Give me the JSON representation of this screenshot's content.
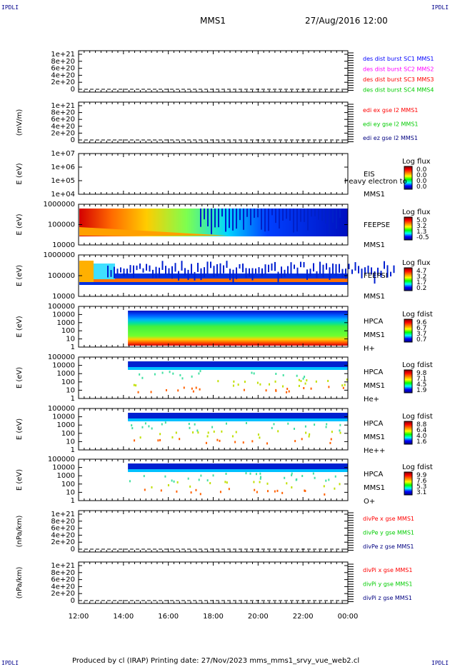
{
  "corner_labels": {
    "tl": "IPDLI",
    "tr": "IPDLI",
    "bl": "IPDLI",
    "br": "IPDLI"
  },
  "header": {
    "spacecraft": "MMS1",
    "datetime": "27/Aug/2016 12:00"
  },
  "footer": {
    "text": "Produced by cl (IRAP)   Printing date: 27/Nov/2023   mms_mms1_srvy_vue_web2.cl"
  },
  "colors": {
    "black": "#000000",
    "blue": "#0000ff",
    "magenta": "#ff00ff",
    "red": "#ff0000",
    "green": "#00cc00",
    "navy": "#000080"
  },
  "chart_data": [
    {
      "type": "line",
      "ylabel": "",
      "yticks": [
        "0",
        "2e+20",
        "4e+20",
        "6e+20",
        "8e+20",
        "1e+21"
      ],
      "series": [
        {
          "name": "des dist burst SC1 MMS1",
          "color": "#0000ff"
        },
        {
          "name": "des dist burst SC2 MMS2",
          "color": "#ff00ff"
        },
        {
          "name": "des dist burst SC3 MMS3",
          "color": "#ff0000"
        },
        {
          "name": "des dist burst SC4 MMS4",
          "color": "#00cc00"
        }
      ]
    },
    {
      "type": "line",
      "ylabel": "(mV/m)",
      "yticks": [
        "0",
        "2e+20",
        "4e+20",
        "6e+20",
        "8e+20",
        "1e+21"
      ],
      "series": [
        {
          "name": "edi ex gse l2 MMS1",
          "color": "#ff0000"
        },
        {
          "name": "edi ey gse l2 MMS1",
          "color": "#00cc00"
        },
        {
          "name": "edi ez gse l2 MMS1",
          "color": "#000080"
        }
      ]
    },
    {
      "type": "heatmap",
      "ylabel": "E (eV)",
      "yticks": [
        "1e+04",
        "1e+05",
        "1e+06",
        "1e+07"
      ],
      "log_y": true,
      "labels": [
        "EIS",
        "MMS1"
      ],
      "overlay_text": "heavy electron to",
      "colorbar": {
        "title": "Log flux",
        "ticks": [
          "0.0",
          "0.0",
          "0.0",
          "0.0"
        ]
      },
      "data_present": false
    },
    {
      "type": "heatmap",
      "ylabel": "E (eV)",
      "yticks": [
        "10000",
        "100000",
        "1000000"
      ],
      "log_y": true,
      "labels": [
        "FEEPSE",
        "MMS1"
      ],
      "colorbar": {
        "title": "Log flux",
        "ticks": [
          "5.0",
          "3.2",
          "1.3",
          "-0.5"
        ]
      },
      "data_start": "12:00",
      "data_end": "00:00"
    },
    {
      "type": "heatmap",
      "ylabel": "E (eV)",
      "yticks": [
        "10000",
        "100000",
        "1000000"
      ],
      "log_y": true,
      "labels": [
        "FEEPSI",
        "MMS1"
      ],
      "colorbar": {
        "title": "Log flux",
        "ticks": [
          "4.7",
          "3.2",
          "1.7",
          "0.2"
        ]
      },
      "data_start": "12:00",
      "data_end": "00:00"
    },
    {
      "type": "heatmap",
      "ylabel": "E (eV)",
      "yticks": [
        "1",
        "10",
        "100",
        "1000",
        "10000",
        "100000"
      ],
      "log_y": true,
      "labels": [
        "HPCA",
        "MMS1",
        "H+"
      ],
      "colorbar": {
        "title": "Log fdist",
        "ticks": [
          "9.6",
          "6.7",
          "3.7",
          "0.7"
        ]
      },
      "data_start": "14:12",
      "data_end": "00:00"
    },
    {
      "type": "heatmap",
      "ylabel": "E (eV)",
      "yticks": [
        "1",
        "10",
        "100",
        "1000",
        "10000",
        "100000"
      ],
      "log_y": true,
      "labels": [
        "HPCA",
        "MMS1",
        "He+"
      ],
      "colorbar": {
        "title": "Log fdist",
        "ticks": [
          "9.8",
          "7.1",
          "4.5",
          "1.9"
        ]
      },
      "data_start": "14:12",
      "data_end": "00:00"
    },
    {
      "type": "heatmap",
      "ylabel": "E (eV)",
      "yticks": [
        "1",
        "10",
        "100",
        "1000",
        "10000",
        "100000"
      ],
      "log_y": true,
      "labels": [
        "HPCA",
        "MMS1",
        "He++"
      ],
      "colorbar": {
        "title": "Log fdist",
        "ticks": [
          "8.8",
          "6.4",
          "4.0",
          "1.6"
        ]
      },
      "data_start": "14:12",
      "data_end": "00:00"
    },
    {
      "type": "heatmap",
      "ylabel": "E (eV)",
      "yticks": [
        "1",
        "10",
        "100",
        "1000",
        "10000",
        "100000"
      ],
      "log_y": true,
      "labels": [
        "HPCA",
        "MMS1",
        "O+"
      ],
      "colorbar": {
        "title": "Log fdist",
        "ticks": [
          "9.9",
          "7.6",
          "5.3",
          "3.1"
        ]
      },
      "data_start": "14:12",
      "data_end": "00:00"
    },
    {
      "type": "line",
      "ylabel": "(nPa/km)",
      "yticks": [
        "0",
        "2e+20",
        "4e+20",
        "6e+20",
        "8e+20",
        "1e+21"
      ],
      "series": [
        {
          "name": "divPe x gse MMS1",
          "color": "#ff0000"
        },
        {
          "name": "divPe y gse MMS1",
          "color": "#00cc00"
        },
        {
          "name": "divPe z gse MMS1",
          "color": "#000080"
        }
      ]
    },
    {
      "type": "line",
      "ylabel": "(nPa/km)",
      "yticks": [
        "0",
        "2e+20",
        "4e+20",
        "6e+20",
        "8e+20",
        "1e+21"
      ],
      "series": [
        {
          "name": "divPi x gse MMS1",
          "color": "#ff0000"
        },
        {
          "name": "divPi y gse MMS1",
          "color": "#00cc00"
        },
        {
          "name": "divPi z gse MMS1",
          "color": "#000080"
        }
      ]
    }
  ],
  "xaxis": {
    "ticks": [
      "12:00",
      "14:00",
      "16:00",
      "18:00",
      "20:00",
      "22:00",
      "00:00"
    ]
  }
}
